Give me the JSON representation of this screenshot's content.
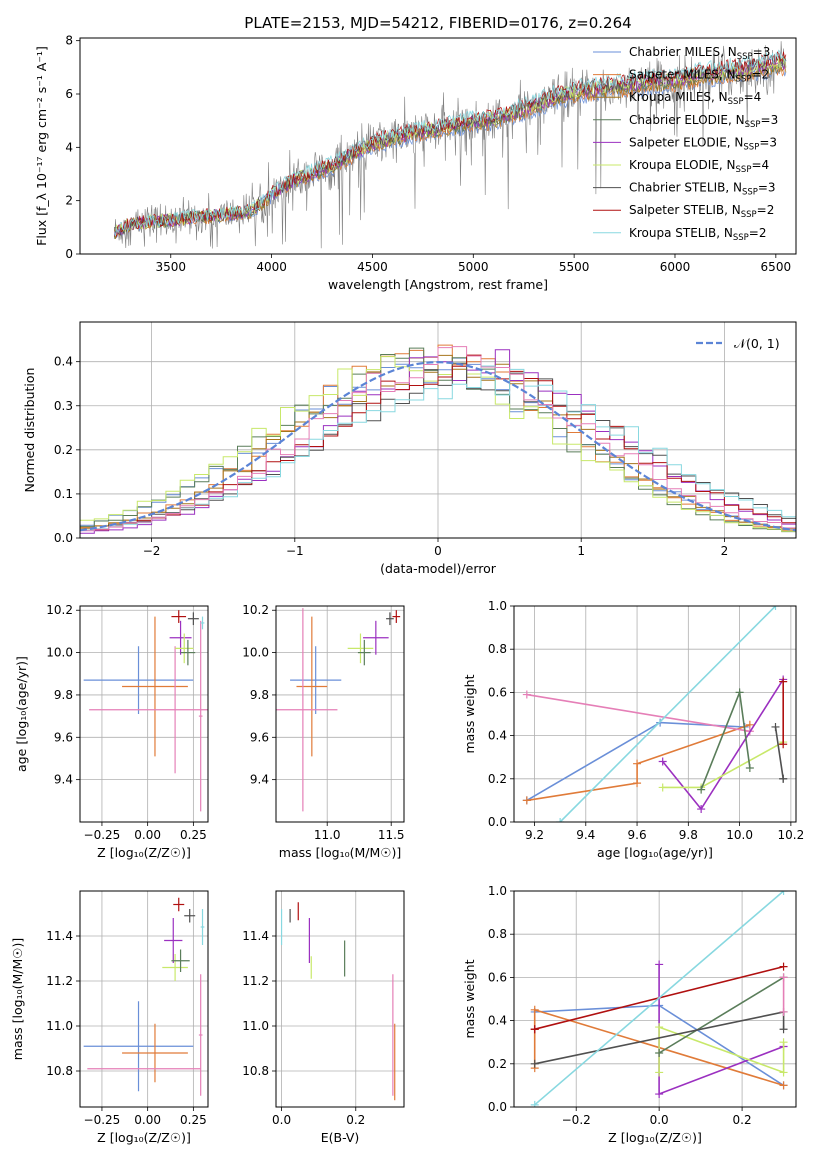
{
  "figure": {
    "title": "PLATE=2153, MJD=54212, FIBERID=0176, z=0.264"
  },
  "colors": {
    "Chabrier MILES": "#6a8fd8",
    "Salpeter MILES": "#e07b39",
    "Kroupa MILES": "#a6761d",
    "Chabrier ELODIE": "#5a7d5a",
    "Salpeter ELODIE": "#9b30c0",
    "Kroupa ELODIE": "#c8e86a",
    "Chabrier STELIB": "#505050",
    "Salpeter STELIB": "#b01010",
    "Kroupa STELIB": "#88d8e0",
    "Kroupa STELIB pink": "#e57fb7",
    "data": "#808080",
    "gauss": "#5b84d6"
  },
  "chart_data": [
    {
      "id": "spectrum",
      "type": "line",
      "xlabel": "wavelength [Angstrom, rest frame]",
      "ylabel": "Flux [f_λ 10⁻¹⁷ erg cm⁻² s⁻¹ A⁻¹]",
      "xlim": [
        3050,
        6600
      ],
      "ylim": [
        0,
        8.1
      ],
      "xticks": [
        3500,
        4000,
        4500,
        5000,
        5500,
        6000,
        6500
      ],
      "yticks": [
        0,
        2,
        4,
        6,
        8
      ],
      "legend_position": "top-right",
      "x_range": [
        3220,
        6550
      ],
      "continuum_x": [
        3220,
        3300,
        3400,
        3500,
        3600,
        3700,
        3800,
        3900,
        4000,
        4100,
        4200,
        4300,
        4400,
        4500,
        4600,
        4700,
        4800,
        4900,
        5000,
        5100,
        5200,
        5300,
        5400,
        5500,
        5600,
        5700,
        5800,
        5900,
        6000,
        6100,
        6200,
        6300,
        6400,
        6550
      ],
      "continuum_y": [
        0.8,
        1.1,
        1.2,
        1.25,
        1.35,
        1.4,
        1.5,
        1.6,
        2.2,
        2.7,
        3.0,
        3.3,
        3.7,
        4.1,
        4.3,
        4.5,
        4.6,
        4.75,
        4.9,
        5.0,
        5.25,
        5.5,
        5.8,
        6.0,
        6.1,
        6.2,
        6.3,
        6.4,
        6.45,
        6.6,
        6.7,
        6.8,
        6.9,
        7.1
      ],
      "series": [
        {
          "name": "Chabrier MILES, N_SSP=3",
          "label_main": "Chabrier MILES, N",
          "label_sub": "SSP",
          "label_end": "=3"
        },
        {
          "name": "Salpeter MILES, N_SSP=2",
          "label_main": "Salpeter MILES, N",
          "label_sub": "SSP",
          "label_end": "=2"
        },
        {
          "name": "Kroupa MILES, N_SSP=4",
          "label_main": "Kroupa MILES, N",
          "label_sub": "SSP",
          "label_end": "=4"
        },
        {
          "name": "Chabrier ELODIE, N_SSP=3",
          "label_main": "Chabrier ELODIE, N",
          "label_sub": "SSP",
          "label_end": "=3"
        },
        {
          "name": "Salpeter ELODIE, N_SSP=3",
          "label_main": "Salpeter ELODIE, N",
          "label_sub": "SSP",
          "label_end": "=3"
        },
        {
          "name": "Kroupa ELODIE, N_SSP=4",
          "label_main": "Kroupa ELODIE, N",
          "label_sub": "SSP",
          "label_end": "=4"
        },
        {
          "name": "Chabrier STELIB, N_SSP=3",
          "label_main": "Chabrier STELIB, N",
          "label_sub": "SSP",
          "label_end": "=3"
        },
        {
          "name": "Salpeter STELIB, N_SSP=2",
          "label_main": "Salpeter STELIB, N",
          "label_sub": "SSP",
          "label_end": "=2"
        },
        {
          "name": "Kroupa STELIB, N_SSP=2",
          "label_main": "Kroupa STELIB, N",
          "label_sub": "SSP",
          "label_end": "=2"
        }
      ]
    },
    {
      "id": "residuals",
      "type": "line",
      "xlabel": "(data-model)/error",
      "ylabel": "Normed distribution",
      "xlim": [
        -2.5,
        2.5
      ],
      "ylim": [
        0,
        0.49
      ],
      "xticks": [
        -2,
        -1,
        0,
        1,
        2
      ],
      "yticks": [
        0.0,
        0.1,
        0.2,
        0.3,
        0.4
      ],
      "grid": true,
      "legend_position": "top-right",
      "legend_label": "𝒩(0, 1)",
      "bin_width": 0.1,
      "gauss_curve": {
        "mean": 0,
        "sigma": 1
      }
    },
    {
      "id": "age_vs_Z",
      "type": "scatter",
      "xlabel": "Z [log₁₀(Z/Z☉)]",
      "ylabel": "age  [log₁₀(age/yr)]",
      "xlim": [
        -0.37,
        0.33
      ],
      "ylim": [
        9.2,
        10.22
      ],
      "xticks": [
        -0.25,
        0.0,
        0.25
      ],
      "yticks": [
        9.4,
        9.6,
        9.8,
        10.0,
        10.2
      ],
      "grid": true,
      "points": [
        {
          "x": -0.05,
          "y": 9.87,
          "xerr": 0.3,
          "yerr": 0.16,
          "color": "#6a8fd8"
        },
        {
          "x": 0.04,
          "y": 9.84,
          "xerr": 0.18,
          "yerr": 0.33,
          "color": "#e07b39"
        },
        {
          "x": 0.15,
          "y": 9.73,
          "xerr": 0.47,
          "yerr": 0.3,
          "color": "#e57fb7"
        },
        {
          "x": 0.18,
          "y": 10.07,
          "xerr": 0.06,
          "yerr": 0.08,
          "color": "#9b30c0"
        },
        {
          "x": 0.2,
          "y": 10.02,
          "xerr": 0.05,
          "yerr": 0.07,
          "color": "#c8e86a"
        },
        {
          "x": 0.22,
          "y": 10.0,
          "xerr": 0.04,
          "yerr": 0.06,
          "color": "#5a7d5a"
        },
        {
          "x": 0.17,
          "y": 10.17,
          "xerr": 0.04,
          "yerr": 0.03,
          "color": "#b01010"
        },
        {
          "x": 0.25,
          "y": 10.16,
          "xerr": 0.03,
          "yerr": 0.03,
          "color": "#505050"
        },
        {
          "x": 0.29,
          "y": 9.7,
          "xerr": 0.01,
          "yerr": 0.45,
          "color": "#e57fb7"
        },
        {
          "x": 0.3,
          "y": 10.14,
          "xerr": 0.01,
          "yerr": 0.03,
          "color": "#88d8e0"
        }
      ]
    },
    {
      "id": "age_vs_mass",
      "type": "scatter",
      "xlabel": "mass [log₁₀(M/M☉)]",
      "ylabel": "",
      "xlim": [
        10.6,
        11.6
      ],
      "ylim": [
        9.2,
        10.22
      ],
      "xticks": [
        11.0,
        11.5
      ],
      "yticks": [
        9.4,
        9.6,
        9.8,
        10.0,
        10.2
      ],
      "grid": true,
      "points": [
        {
          "x": 10.91,
          "y": 9.87,
          "xerr": 0.2,
          "yerr": 0.16,
          "color": "#6a8fd8"
        },
        {
          "x": 10.88,
          "y": 9.84,
          "xerr": 0.12,
          "yerr": 0.33,
          "color": "#e07b39"
        },
        {
          "x": 10.81,
          "y": 9.73,
          "xerr": 0.27,
          "yerr": 0.48,
          "color": "#e57fb7"
        },
        {
          "x": 11.38,
          "y": 10.07,
          "xerr": 0.1,
          "yerr": 0.08,
          "color": "#9b30c0"
        },
        {
          "x": 11.26,
          "y": 10.02,
          "xerr": 0.1,
          "yerr": 0.07,
          "color": "#c8e86a"
        },
        {
          "x": 11.29,
          "y": 10.0,
          "xerr": 0.05,
          "yerr": 0.06,
          "color": "#5a7d5a"
        },
        {
          "x": 11.54,
          "y": 10.17,
          "xerr": 0.03,
          "yerr": 0.03,
          "color": "#b01010"
        },
        {
          "x": 11.49,
          "y": 10.16,
          "xerr": 0.03,
          "yerr": 0.03,
          "color": "#505050"
        }
      ]
    },
    {
      "id": "mw_vs_age",
      "type": "line",
      "xlabel": "age  [log₁₀(age/yr)]",
      "ylabel": "mass weight",
      "xlim": [
        9.12,
        10.22
      ],
      "ylim": [
        0,
        1.0
      ],
      "xticks": [
        9.2,
        9.4,
        9.6,
        9.8,
        10.0,
        10.2
      ],
      "yticks": [
        0.0,
        0.2,
        0.4,
        0.6,
        0.8,
        1.0
      ],
      "grid": true,
      "series": [
        {
          "color": "#6a8fd8",
          "x": [
            9.17,
            9.69,
            10.02
          ],
          "y": [
            0.1,
            0.46,
            0.44
          ]
        },
        {
          "color": "#e07b39",
          "x": [
            9.17,
            9.6,
            9.6,
            10.04
          ],
          "y": [
            0.1,
            0.18,
            0.27,
            0.45
          ]
        },
        {
          "color": "#e57fb7",
          "x": [
            9.17,
            10.04
          ],
          "y": [
            0.59,
            0.42
          ]
        },
        {
          "color": "#9b30c0",
          "x": [
            9.7,
            9.85,
            10.17
          ],
          "y": [
            0.28,
            0.06,
            0.66
          ]
        },
        {
          "color": "#c8e86a",
          "x": [
            9.7,
            9.85,
            10.17
          ],
          "y": [
            0.16,
            0.16,
            0.37
          ]
        },
        {
          "color": "#5a7d5a",
          "x": [
            9.85,
            10.0,
            10.04
          ],
          "y": [
            0.15,
            0.6,
            0.25
          ]
        },
        {
          "color": "#505050",
          "x": [
            10.14,
            10.17,
            10.17
          ],
          "y": [
            0.44,
            0.2,
            0.2
          ]
        },
        {
          "color": "#b01010",
          "x": [
            10.17,
            10.17
          ],
          "y": [
            0.65,
            0.36
          ]
        },
        {
          "color": "#88d8e0",
          "x": [
            9.3,
            10.14
          ],
          "y": [
            0.0,
            1.0
          ]
        }
      ]
    },
    {
      "id": "mass_vs_Z",
      "type": "scatter",
      "xlabel": "Z [log₁₀(Z/Z☉)]",
      "ylabel": "mass [log₁₀(M/M☉)]",
      "xlim": [
        -0.37,
        0.33
      ],
      "ylim": [
        10.64,
        11.6
      ],
      "xticks": [
        -0.25,
        0.0,
        0.25
      ],
      "yticks": [
        10.8,
        11.0,
        11.2,
        11.4
      ],
      "grid": true,
      "points": [
        {
          "x": -0.05,
          "y": 10.91,
          "xerr": 0.3,
          "yerr": 0.2,
          "color": "#6a8fd8"
        },
        {
          "x": 0.04,
          "y": 10.88,
          "xerr": 0.18,
          "yerr": 0.13,
          "color": "#e07b39"
        },
        {
          "x": -0.02,
          "y": 10.81,
          "xerr": 0.31,
          "yerr": 0.0,
          "color": "#e57fb7"
        },
        {
          "x": 0.29,
          "y": 10.96,
          "xerr": 0.01,
          "yerr": 0.27,
          "color": "#e57fb7"
        },
        {
          "x": 0.14,
          "y": 11.38,
          "xerr": 0.05,
          "yerr": 0.1,
          "color": "#9b30c0"
        },
        {
          "x": 0.15,
          "y": 11.26,
          "xerr": 0.07,
          "yerr": 0.06,
          "color": "#c8e86a"
        },
        {
          "x": 0.18,
          "y": 11.29,
          "xerr": 0.05,
          "yerr": 0.05,
          "color": "#5a7d5a"
        },
        {
          "x": 0.17,
          "y": 11.54,
          "xerr": 0.03,
          "yerr": 0.03,
          "color": "#b01010"
        },
        {
          "x": 0.23,
          "y": 11.49,
          "xerr": 0.03,
          "yerr": 0.03,
          "color": "#505050"
        },
        {
          "x": 0.3,
          "y": 11.44,
          "xerr": 0.01,
          "yerr": 0.08,
          "color": "#88d8e0"
        }
      ]
    },
    {
      "id": "mass_vs_ebv",
      "type": "scatter",
      "xlabel": "E(B-V)",
      "ylabel": "",
      "xlim": [
        -0.015,
        0.33
      ],
      "ylim": [
        10.64,
        11.6
      ],
      "xticks": [
        0.0,
        0.2
      ],
      "yticks": [
        10.8,
        11.0,
        11.2,
        11.4
      ],
      "grid": true,
      "points": [
        {
          "x": 0.0,
          "y": 11.44,
          "yerr": 0.08,
          "color": "#88d8e0"
        },
        {
          "x": 0.023,
          "y": 11.49,
          "yerr": 0.03,
          "color": "#505050"
        },
        {
          "x": 0.045,
          "y": 11.51,
          "yerr": 0.04,
          "color": "#b01010"
        },
        {
          "x": 0.075,
          "y": 11.38,
          "yerr": 0.1,
          "color": "#9b30c0"
        },
        {
          "x": 0.08,
          "y": 11.26,
          "yerr": 0.05,
          "color": "#c8e86a"
        },
        {
          "x": 0.17,
          "y": 11.3,
          "yerr": 0.08,
          "color": "#5a7d5a"
        },
        {
          "x": 0.3,
          "y": 10.96,
          "yerr": 0.27,
          "color": "#e57fb7"
        },
        {
          "x": 0.305,
          "y": 10.84,
          "yerr": 0.17,
          "color": "#e07b39"
        }
      ]
    },
    {
      "id": "mw_vs_Z",
      "type": "line",
      "xlabel": "Z [log₁₀(Z/Z☉)]",
      "ylabel": "mass weight",
      "xlim": [
        -0.35,
        0.33
      ],
      "ylim": [
        0,
        1.0
      ],
      "xticks": [
        -0.2,
        0.0,
        0.2
      ],
      "yticks": [
        0.0,
        0.2,
        0.4,
        0.6,
        0.8,
        1.0
      ],
      "grid": true,
      "series": [
        {
          "color": "#6a8fd8",
          "x": [
            -0.3,
            0.0,
            0.3
          ],
          "y": [
            0.44,
            0.47,
            0.1
          ]
        },
        {
          "color": "#e07b39",
          "x": [
            -0.3,
            -0.3,
            0.3
          ],
          "y": [
            0.18,
            0.45,
            0.1
          ]
        },
        {
          "color": "#9b30c0",
          "x": [
            0.0,
            0.0,
            0.3
          ],
          "y": [
            0.66,
            0.06,
            0.28
          ]
        },
        {
          "color": "#c8e86a",
          "x": [
            0.0,
            0.0,
            0.3,
            0.3
          ],
          "y": [
            0.16,
            0.37,
            0.16,
            0.3
          ]
        },
        {
          "color": "#5a7d5a",
          "x": [
            0.0,
            0.3
          ],
          "y": [
            0.25,
            0.6
          ]
        },
        {
          "color": "#505050",
          "x": [
            -0.3,
            0.3,
            0.3
          ],
          "y": [
            0.2,
            0.44,
            0.36
          ]
        },
        {
          "color": "#b01010",
          "x": [
            -0.3,
            -0.3,
            0.3
          ],
          "y": [
            0.36,
            0.36,
            0.65
          ]
        },
        {
          "color": "#88d8e0",
          "x": [
            -0.3,
            0.3
          ],
          "y": [
            0.01,
            1.0
          ]
        },
        {
          "color": "#e57fb7",
          "x": [
            0.3,
            0.3
          ],
          "y": [
            0.6,
            0.44
          ]
        }
      ]
    }
  ]
}
